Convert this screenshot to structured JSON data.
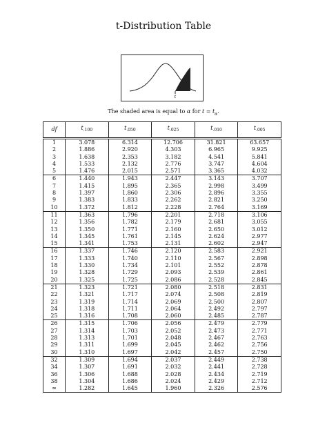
{
  "title": "t-Distribution Table",
  "figure": {
    "tail_label": "t"
  },
  "caption": {
    "prefix": "The shaded area is equal to ",
    "alpha": "α",
    "mid": " for ",
    "t": "t",
    "eq": " = ",
    "t_alpha": "t",
    "alpha_sub": "α",
    "suffix": "."
  },
  "table": {
    "headers": [
      {
        "main": "df",
        "sub": ""
      },
      {
        "main": "t",
        "sub": ".100"
      },
      {
        "main": "t",
        "sub": ".050"
      },
      {
        "main": "t",
        "sub": ".025"
      },
      {
        "main": "t",
        "sub": ".010"
      },
      {
        "main": "t",
        "sub": ".005"
      }
    ],
    "rows": [
      [
        "1",
        "3.078",
        "6.314",
        "12.706",
        "31.821",
        "63.657"
      ],
      [
        "2",
        "1.886",
        "2.920",
        "4.303",
        "6.965",
        "9.925"
      ],
      [
        "3",
        "1.638",
        "2.353",
        "3.182",
        "4.541",
        "5.841"
      ],
      [
        "4",
        "1.533",
        "2.132",
        "2.776",
        "3.747",
        "4.604"
      ],
      [
        "5",
        "1.476",
        "2.015",
        "2.571",
        "3.365",
        "4.032"
      ],
      [
        "6",
        "1.440",
        "1.943",
        "2.447",
        "3.143",
        "3.707"
      ],
      [
        "7",
        "1.415",
        "1.895",
        "2.365",
        "2.998",
        "3.499"
      ],
      [
        "8",
        "1.397",
        "1.860",
        "2.306",
        "2.896",
        "3.355"
      ],
      [
        "9",
        "1.383",
        "1.833",
        "2.262",
        "2.821",
        "3.250"
      ],
      [
        "10",
        "1.372",
        "1.812",
        "2.228",
        "2.764",
        "3.169"
      ],
      [
        "11",
        "1.363",
        "1.796",
        "2.201",
        "2.718",
        "3.106"
      ],
      [
        "12",
        "1.356",
        "1.782",
        "2.179",
        "2.681",
        "3.055"
      ],
      [
        "13",
        "1.350",
        "1.771",
        "2.160",
        "2.650",
        "3.012"
      ],
      [
        "14",
        "1.345",
        "1.761",
        "2.145",
        "2.624",
        "2.977"
      ],
      [
        "15",
        "1.341",
        "1.753",
        "2.131",
        "2.602",
        "2.947"
      ],
      [
        "16",
        "1.337",
        "1.746",
        "2.120",
        "2.583",
        "2.921"
      ],
      [
        "17",
        "1.333",
        "1.740",
        "2.110",
        "2.567",
        "2.898"
      ],
      [
        "18",
        "1.330",
        "1.734",
        "2.101",
        "2.552",
        "2.878"
      ],
      [
        "19",
        "1.328",
        "1.729",
        "2.093",
        "2.539",
        "2.861"
      ],
      [
        "20",
        "1.325",
        "1.725",
        "2.086",
        "2.528",
        "2.845"
      ],
      [
        "21",
        "1.323",
        "1.721",
        "2.080",
        "2.518",
        "2.831"
      ],
      [
        "22",
        "1.321",
        "1.717",
        "2.074",
        "2.508",
        "2.819"
      ],
      [
        "23",
        "1.319",
        "1.714",
        "2.069",
        "2.500",
        "2.807"
      ],
      [
        "24",
        "1.318",
        "1.711",
        "2.064",
        "2.492",
        "2.797"
      ],
      [
        "25",
        "1.316",
        "1.708",
        "2.060",
        "2.485",
        "2.787"
      ],
      [
        "26",
        "1.315",
        "1.706",
        "2.056",
        "2.479",
        "2.779"
      ],
      [
        "27",
        "1.314",
        "1.703",
        "2.052",
        "2.473",
        "2.771"
      ],
      [
        "28",
        "1.313",
        "1.701",
        "2.048",
        "2.467",
        "2.763"
      ],
      [
        "29",
        "1.311",
        "1.699",
        "2.045",
        "2.462",
        "2.756"
      ],
      [
        "30",
        "1.310",
        "1.697",
        "2.042",
        "2.457",
        "2.750"
      ],
      [
        "32",
        "1.309",
        "1.694",
        "2.037",
        "2.449",
        "2.738"
      ],
      [
        "34",
        "1.307",
        "1.691",
        "2.032",
        "2.441",
        "2.728"
      ],
      [
        "36",
        "1.306",
        "1.688",
        "2.028",
        "2.434",
        "2.719"
      ],
      [
        "38",
        "1.304",
        "1.686",
        "2.024",
        "2.429",
        "2.712"
      ],
      [
        "∞",
        "1.282",
        "1.645",
        "1.960",
        "2.326",
        "2.576"
      ]
    ]
  }
}
